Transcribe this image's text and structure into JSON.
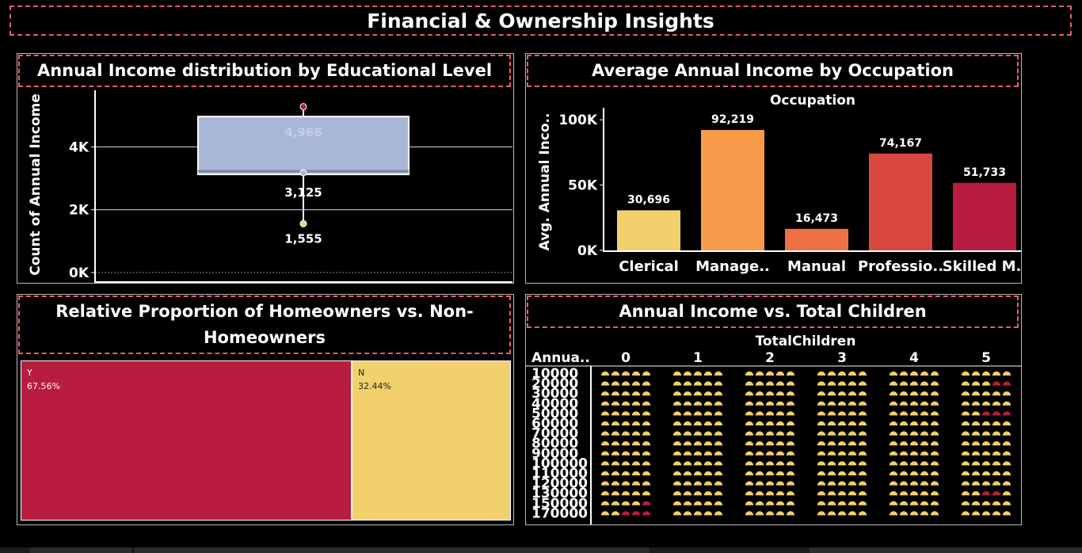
{
  "dashboard": {
    "title": "Financial &  Ownership Insights"
  },
  "box_panel": {
    "title": "Annual Income distribution by Educational Level"
  },
  "occ_panel": {
    "title": "Average Annual Income by Occupation"
  },
  "home_panel": {
    "title": "Relative Proportion of Homeowners vs. Non-Homeowners"
  },
  "children_panel": {
    "title": "Annual Income vs. Total Children"
  },
  "colors": {
    "background": "#000000",
    "border_dashed": "#e2606a",
    "box_fill": "#a8b6d8",
    "clerical": "#f2d06b",
    "management": "#f89c4b",
    "manual": "#ef7045",
    "professional": "#d9483e",
    "skilled_manual": "#b81c3f",
    "homeowner_yes": "#b81c3f",
    "homeowner_no": "#f2d06b",
    "dot_yellow": "#f2d06b",
    "dot_red": "#b81c3f"
  },
  "chart_data": [
    {
      "type": "boxplot",
      "title": "Annual Income distribution by Educational Level",
      "ylabel": "Count of Annual Income",
      "ylim": [
        0,
        5600
      ],
      "y_ticks": [
        0,
        2000,
        4000
      ],
      "y_tick_labels": [
        "0K",
        "2K",
        "4K"
      ],
      "upper_quartile": 4966,
      "median": 3125,
      "lower_quartile": 3125,
      "whisker_top": 5280,
      "min": 1555,
      "points": [
        5280,
        3125,
        1555
      ],
      "labels": {
        "upper": "4,966",
        "median": "3,125",
        "min": "1,555"
      }
    },
    {
      "type": "bar",
      "title": "Average Annual Income by Occupation",
      "header": "Occupation",
      "ylabel": "Avg. Annual Inco..",
      "ylim": [
        0,
        105000
      ],
      "y_ticks": [
        0,
        50000,
        100000
      ],
      "y_tick_labels": [
        "0K",
        "50K",
        "100K"
      ],
      "categories": [
        "Clerical",
        "Manage..",
        "Manual",
        "Professio..",
        "Skilled M.."
      ],
      "values": [
        30696,
        92219,
        16473,
        74167,
        51733
      ],
      "value_labels": [
        "30,696",
        "92,219",
        "16,473",
        "74,167",
        "51,733"
      ]
    },
    {
      "type": "treemap",
      "title": "Relative Proportion of Homeowners vs. Non-Homeowners",
      "segments": [
        {
          "name": "Y",
          "value": 67.56,
          "label": "67.56%"
        },
        {
          "name": "N",
          "value": 32.44,
          "label": "32.44%"
        }
      ]
    },
    {
      "type": "pie-grid",
      "title": "Annual Income vs. Total Children",
      "column_header": "TotalChildren",
      "row_header": "Annua..",
      "columns": [
        "0",
        "1",
        "2",
        "3",
        "4",
        "5"
      ],
      "rows": [
        "10000",
        "20000",
        "30000",
        "40000",
        "50000",
        "60000",
        "70000",
        "80000",
        "90000",
        "100000",
        "110000",
        "120000",
        "130000",
        "150000",
        "170000"
      ],
      "red_marks": [
        {
          "col": 5,
          "row": 1,
          "k": 3
        },
        {
          "col": 5,
          "row": 1,
          "k": 4
        },
        {
          "col": 5,
          "row": 4,
          "k": 2
        },
        {
          "col": 5,
          "row": 4,
          "k": 3
        },
        {
          "col": 5,
          "row": 4,
          "k": 4
        },
        {
          "col": 5,
          "row": 12,
          "k": 2
        },
        {
          "col": 5,
          "row": 12,
          "k": 3
        },
        {
          "col": 0,
          "row": 13,
          "k": 4
        },
        {
          "col": 0,
          "row": 14,
          "k": 2
        },
        {
          "col": 0,
          "row": 14,
          "k": 3
        },
        {
          "col": 0,
          "row": 14,
          "k": 4
        }
      ]
    }
  ]
}
